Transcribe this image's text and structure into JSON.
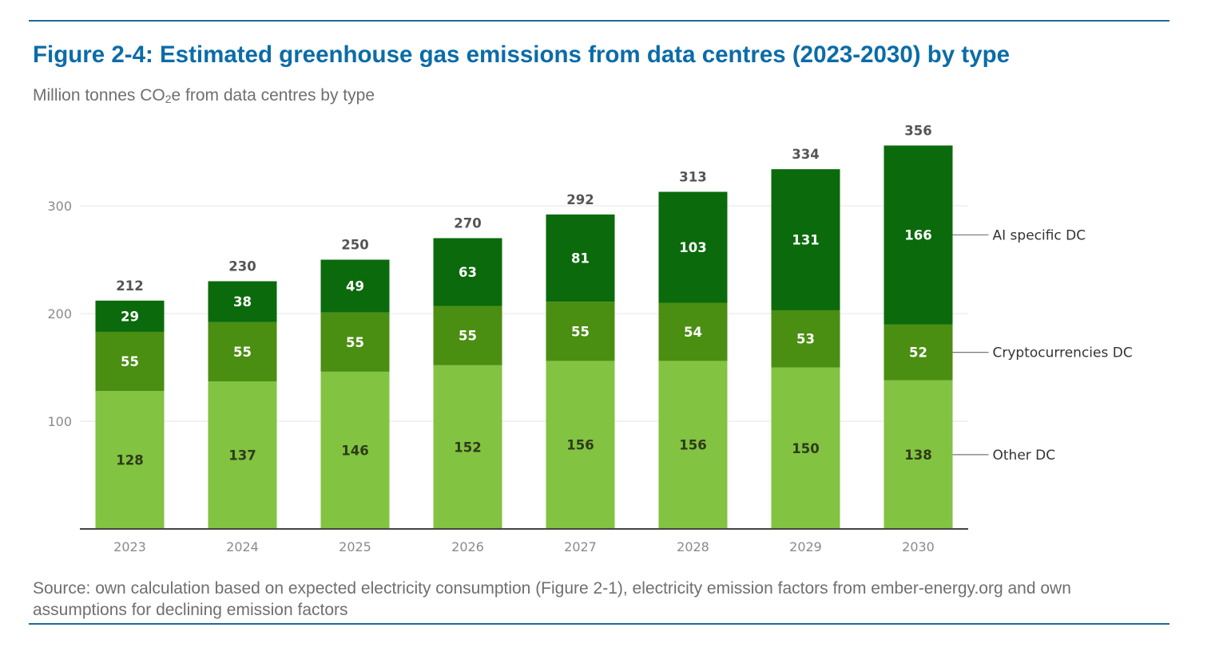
{
  "figure": {
    "title": "Figure 2-4: Estimated greenhouse gas emissions from data centres (2023-2030) by type",
    "subtitle_pre": "Million tonnes CO",
    "subtitle_sub": "2",
    "subtitle_post": "e from data centres by type",
    "source": "Source: own calculation based on expected electricity consumption (Figure 2-1), electricity emission factors from ember-energy.org and own assumptions for declining emission factors"
  },
  "chart_data": {
    "type": "bar",
    "stacked": true,
    "categories": [
      "2023",
      "2024",
      "2025",
      "2026",
      "2027",
      "2028",
      "2029",
      "2030"
    ],
    "series": [
      {
        "name": "Other DC",
        "color": "#82c341",
        "label_color": "#2e3a1a",
        "values": [
          128,
          137,
          146,
          152,
          156,
          156,
          150,
          138
        ]
      },
      {
        "name": "Cryptocurrencies DC",
        "color": "#4a8e12",
        "label_color": "#ffffff",
        "values": [
          55,
          55,
          55,
          55,
          55,
          54,
          53,
          52
        ]
      },
      {
        "name": "AI specific DC",
        "color": "#0b6a0b",
        "label_color": "#ffffff",
        "values": [
          29,
          38,
          49,
          63,
          81,
          103,
          131,
          166
        ]
      }
    ],
    "totals": [
      212,
      230,
      250,
      270,
      292,
      313,
      334,
      356
    ],
    "yticks": [
      100,
      200,
      300
    ],
    "ylim": [
      0,
      400
    ],
    "grid": true,
    "legend": "right, labels at the 2030 bar"
  }
}
